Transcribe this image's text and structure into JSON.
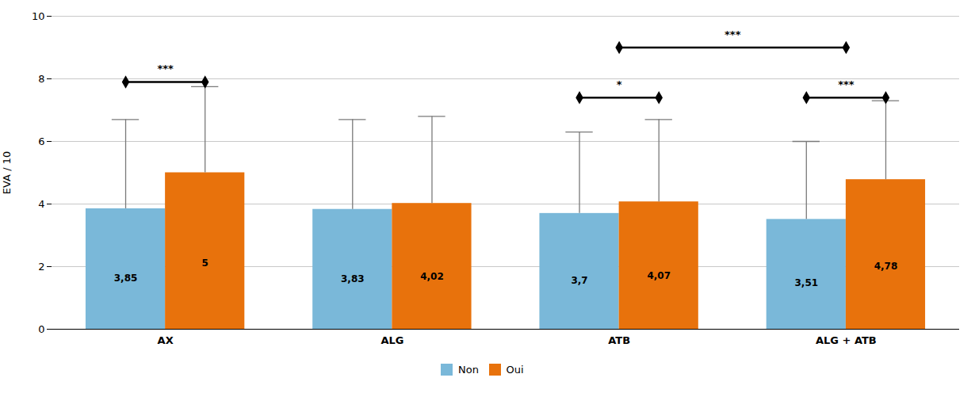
{
  "chart_data": {
    "type": "bar",
    "categories": [
      "AX",
      "ALG",
      "ATB",
      "ALG + ATB"
    ],
    "series": [
      {
        "name": "Non",
        "color": "#7ab8d9",
        "values": [
          3.85,
          3.83,
          3.7,
          3.51
        ],
        "errors": [
          2.85,
          2.87,
          2.6,
          2.49
        ],
        "value_labels": [
          "3,85",
          "3,83",
          "3,7",
          "3,51"
        ]
      },
      {
        "name": "Oui",
        "color": "#e8720c",
        "values": [
          5.0,
          4.02,
          4.07,
          4.78
        ],
        "errors": [
          2.75,
          2.78,
          2.63,
          2.52
        ],
        "value_labels": [
          "5",
          "4,02",
          "4,07",
          "4,78"
        ]
      }
    ],
    "ylabel": "EVA / 10",
    "ylim": [
      0,
      10
    ],
    "yticks": [
      0,
      2,
      4,
      6,
      8,
      10
    ],
    "grid": true,
    "legend": "bottom",
    "data_labels": true,
    "annotations": [
      {
        "text": "***",
        "y": 7.9,
        "from": [
          "AX",
          "Non"
        ],
        "to": [
          "AX",
          "Oui"
        ]
      },
      {
        "text": "*",
        "y": 7.4,
        "from": [
          "ATB",
          "Non"
        ],
        "to": [
          "ATB",
          "Oui"
        ]
      },
      {
        "text": "***",
        "y": 7.4,
        "from": [
          "ALG + ATB",
          "Non"
        ],
        "to": [
          "ALG + ATB",
          "Oui"
        ]
      },
      {
        "text": "***",
        "y": 9.0,
        "from": [
          "ATB"
        ],
        "to": [
          "ALG + ATB"
        ]
      }
    ]
  }
}
